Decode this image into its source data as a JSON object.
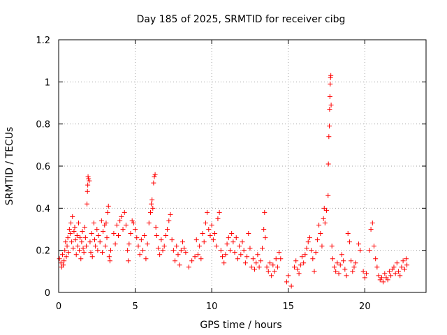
{
  "chart_data": {
    "type": "scatter",
    "title": "Day 185 of 2025, SRMTID for receiver cibg",
    "xlabel": "GPS time / hours",
    "ylabel": "SRMTID / TECUs",
    "xlim": [
      0,
      24
    ],
    "ylim": [
      0,
      1.2
    ],
    "xticks": [
      0,
      5,
      10,
      15,
      20
    ],
    "xtick_labels": [
      "0",
      "5",
      "10",
      "15",
      "20"
    ],
    "yticks": [
      0,
      0.2,
      0.4,
      0.6,
      0.8,
      1,
      1.2
    ],
    "ytick_labels": [
      "0",
      "0.2",
      "0.4",
      "0.6",
      "0.8",
      "1",
      "1.2"
    ],
    "grid": true,
    "marker": "+",
    "color": "#ff0000",
    "series": [
      {
        "name": "SRMTID",
        "points": [
          [
            0.05,
            0.16
          ],
          [
            0.15,
            0.14
          ],
          [
            0.2,
            0.12
          ],
          [
            0.25,
            0.18
          ],
          [
            0.3,
            0.13
          ],
          [
            0.35,
            0.15
          ],
          [
            0.4,
            0.2
          ],
          [
            0.45,
            0.24
          ],
          [
            0.5,
            0.17
          ],
          [
            0.55,
            0.22
          ],
          [
            0.6,
            0.26
          ],
          [
            0.65,
            0.19
          ],
          [
            0.7,
            0.3
          ],
          [
            0.75,
            0.28
          ],
          [
            0.8,
            0.33
          ],
          [
            0.85,
            0.24
          ],
          [
            0.9,
            0.36
          ],
          [
            0.95,
            0.21
          ],
          [
            1.0,
            0.29
          ],
          [
            1.05,
            0.31
          ],
          [
            1.1,
            0.25
          ],
          [
            1.15,
            0.18
          ],
          [
            1.2,
            0.27
          ],
          [
            1.25,
            0.22
          ],
          [
            1.3,
            0.33
          ],
          [
            1.35,
            0.2
          ],
          [
            1.4,
            0.26
          ],
          [
            1.45,
            0.16
          ],
          [
            1.5,
            0.24
          ],
          [
            1.55,
            0.29
          ],
          [
            1.6,
            0.21
          ],
          [
            1.65,
            0.19
          ],
          [
            1.7,
            0.31
          ],
          [
            1.75,
            0.26
          ],
          [
            1.8,
            0.22
          ],
          [
            1.85,
            0.42
          ],
          [
            1.88,
            0.48
          ],
          [
            1.9,
            0.51
          ],
          [
            1.92,
            0.55
          ],
          [
            1.95,
            0.54
          ],
          [
            2.0,
            0.53
          ],
          [
            2.05,
            0.24
          ],
          [
            2.1,
            0.19
          ],
          [
            2.15,
            0.28
          ],
          [
            2.2,
            0.17
          ],
          [
            2.3,
            0.33
          ],
          [
            2.35,
            0.25
          ],
          [
            2.4,
            0.22
          ],
          [
            2.5,
            0.3
          ],
          [
            2.55,
            0.2
          ],
          [
            2.6,
            0.27
          ],
          [
            2.7,
            0.24
          ],
          [
            2.8,
            0.34
          ],
          [
            2.85,
            0.19
          ],
          [
            2.9,
            0.29
          ],
          [
            3.0,
            0.32
          ],
          [
            3.05,
            0.22
          ],
          [
            3.1,
            0.33
          ],
          [
            3.15,
            0.26
          ],
          [
            3.2,
            0.38
          ],
          [
            3.25,
            0.41
          ],
          [
            3.3,
            0.17
          ],
          [
            3.35,
            0.15
          ],
          [
            3.4,
            0.2
          ],
          [
            3.6,
            0.28
          ],
          [
            3.7,
            0.23
          ],
          [
            3.8,
            0.32
          ],
          [
            3.9,
            0.27
          ],
          [
            4.0,
            0.34
          ],
          [
            4.1,
            0.36
          ],
          [
            4.2,
            0.3
          ],
          [
            4.3,
            0.38
          ],
          [
            4.4,
            0.32
          ],
          [
            4.5,
            0.2
          ],
          [
            4.55,
            0.15
          ],
          [
            4.6,
            0.23
          ],
          [
            4.7,
            0.28
          ],
          [
            4.8,
            0.34
          ],
          [
            4.9,
            0.33
          ],
          [
            5.0,
            0.3
          ],
          [
            5.1,
            0.26
          ],
          [
            5.2,
            0.22
          ],
          [
            5.3,
            0.18
          ],
          [
            5.4,
            0.25
          ],
          [
            5.5,
            0.2
          ],
          [
            5.6,
            0.27
          ],
          [
            5.7,
            0.16
          ],
          [
            5.8,
            0.23
          ],
          [
            5.9,
            0.33
          ],
          [
            6.0,
            0.38
          ],
          [
            6.05,
            0.42
          ],
          [
            6.1,
            0.44
          ],
          [
            6.15,
            0.4
          ],
          [
            6.2,
            0.52
          ],
          [
            6.25,
            0.55
          ],
          [
            6.3,
            0.56
          ],
          [
            6.35,
            0.31
          ],
          [
            6.4,
            0.27
          ],
          [
            6.5,
            0.21
          ],
          [
            6.6,
            0.18
          ],
          [
            6.7,
            0.25
          ],
          [
            6.8,
            0.2
          ],
          [
            6.9,
            0.22
          ],
          [
            7.0,
            0.27
          ],
          [
            7.1,
            0.3
          ],
          [
            7.2,
            0.34
          ],
          [
            7.3,
            0.37
          ],
          [
            7.4,
            0.25
          ],
          [
            7.5,
            0.2
          ],
          [
            7.6,
            0.15
          ],
          [
            7.7,
            0.22
          ],
          [
            7.8,
            0.18
          ],
          [
            7.9,
            0.13
          ],
          [
            8.0,
            0.2
          ],
          [
            8.1,
            0.24
          ],
          [
            8.2,
            0.21
          ],
          [
            8.3,
            0.19
          ],
          [
            8.5,
            0.12
          ],
          [
            8.7,
            0.15
          ],
          [
            8.9,
            0.17
          ],
          [
            9.0,
            0.25
          ],
          [
            9.1,
            0.18
          ],
          [
            9.2,
            0.22
          ],
          [
            9.3,
            0.16
          ],
          [
            9.4,
            0.28
          ],
          [
            9.5,
            0.24
          ],
          [
            9.6,
            0.33
          ],
          [
            9.7,
            0.38
          ],
          [
            9.8,
            0.3
          ],
          [
            9.9,
            0.27
          ],
          [
            10.0,
            0.32
          ],
          [
            10.1,
            0.25
          ],
          [
            10.2,
            0.28
          ],
          [
            10.3,
            0.22
          ],
          [
            10.4,
            0.35
          ],
          [
            10.5,
            0.38
          ],
          [
            10.6,
            0.2
          ],
          [
            10.7,
            0.17
          ],
          [
            10.8,
            0.14
          ],
          [
            10.9,
            0.18
          ],
          [
            11.0,
            0.23
          ],
          [
            11.1,
            0.26
          ],
          [
            11.2,
            0.2
          ],
          [
            11.3,
            0.28
          ],
          [
            11.4,
            0.24
          ],
          [
            11.5,
            0.19
          ],
          [
            11.6,
            0.26
          ],
          [
            11.7,
            0.16
          ],
          [
            11.8,
            0.22
          ],
          [
            11.9,
            0.18
          ],
          [
            12.0,
            0.24
          ],
          [
            12.1,
            0.2
          ],
          [
            12.2,
            0.14
          ],
          [
            12.3,
            0.17
          ],
          [
            12.4,
            0.28
          ],
          [
            12.5,
            0.21
          ],
          [
            12.6,
            0.12
          ],
          [
            12.7,
            0.16
          ],
          [
            12.8,
            0.11
          ],
          [
            12.9,
            0.14
          ],
          [
            13.0,
            0.18
          ],
          [
            13.1,
            0.12
          ],
          [
            13.2,
            0.15
          ],
          [
            13.3,
            0.21
          ],
          [
            13.4,
            0.3
          ],
          [
            13.45,
            0.38
          ],
          [
            13.5,
            0.26
          ],
          [
            13.6,
            0.12
          ],
          [
            13.7,
            0.1
          ],
          [
            13.8,
            0.14
          ],
          [
            13.9,
            0.08
          ],
          [
            14.0,
            0.13
          ],
          [
            14.1,
            0.1
          ],
          [
            14.2,
            0.16
          ],
          [
            14.3,
            0.12
          ],
          [
            14.4,
            0.19
          ],
          [
            14.5,
            0.16
          ],
          [
            14.9,
            0.05
          ],
          [
            15.0,
            0.08
          ],
          [
            15.2,
            0.03
          ],
          [
            15.4,
            0.12
          ],
          [
            15.5,
            0.15
          ],
          [
            15.6,
            0.11
          ],
          [
            15.7,
            0.09
          ],
          [
            15.8,
            0.13
          ],
          [
            15.9,
            0.17
          ],
          [
            16.0,
            0.14
          ],
          [
            16.1,
            0.18
          ],
          [
            16.2,
            0.21
          ],
          [
            16.3,
            0.24
          ],
          [
            16.4,
            0.26
          ],
          [
            16.5,
            0.2
          ],
          [
            16.6,
            0.16
          ],
          [
            16.7,
            0.1
          ],
          [
            16.8,
            0.19
          ],
          [
            16.9,
            0.25
          ],
          [
            17.0,
            0.32
          ],
          [
            17.1,
            0.28
          ],
          [
            17.2,
            0.22
          ],
          [
            17.3,
            0.35
          ],
          [
            17.35,
            0.4
          ],
          [
            17.4,
            0.33
          ],
          [
            17.5,
            0.39
          ],
          [
            17.6,
            0.46
          ],
          [
            17.62,
            0.61
          ],
          [
            17.65,
            0.74
          ],
          [
            17.68,
            0.79
          ],
          [
            17.7,
            0.87
          ],
          [
            17.72,
            0.93
          ],
          [
            17.74,
            0.99
          ],
          [
            17.76,
            1.02
          ],
          [
            17.78,
            1.03
          ],
          [
            17.8,
            0.89
          ],
          [
            17.85,
            0.22
          ],
          [
            17.9,
            0.16
          ],
          [
            18.0,
            0.12
          ],
          [
            18.1,
            0.1
          ],
          [
            18.2,
            0.14
          ],
          [
            18.3,
            0.09
          ],
          [
            18.4,
            0.13
          ],
          [
            18.5,
            0.18
          ],
          [
            18.6,
            0.15
          ],
          [
            18.7,
            0.11
          ],
          [
            18.8,
            0.08
          ],
          [
            18.9,
            0.28
          ],
          [
            19.0,
            0.24
          ],
          [
            19.1,
            0.15
          ],
          [
            19.2,
            0.1
          ],
          [
            19.3,
            0.12
          ],
          [
            19.4,
            0.14
          ],
          [
            19.6,
            0.23
          ],
          [
            19.7,
            0.2
          ],
          [
            19.9,
            0.1
          ],
          [
            20.0,
            0.07
          ],
          [
            20.1,
            0.09
          ],
          [
            20.3,
            0.2
          ],
          [
            20.4,
            0.3
          ],
          [
            20.5,
            0.33
          ],
          [
            20.6,
            0.22
          ],
          [
            20.7,
            0.16
          ],
          [
            20.8,
            0.12
          ],
          [
            20.9,
            0.08
          ],
          [
            21.0,
            0.06
          ],
          [
            21.1,
            0.07
          ],
          [
            21.2,
            0.05
          ],
          [
            21.3,
            0.09
          ],
          [
            21.4,
            0.07
          ],
          [
            21.5,
            0.06
          ],
          [
            21.6,
            0.1
          ],
          [
            21.7,
            0.08
          ],
          [
            21.8,
            0.11
          ],
          [
            21.9,
            0.12
          ],
          [
            22.0,
            0.09
          ],
          [
            22.1,
            0.14
          ],
          [
            22.2,
            0.1
          ],
          [
            22.3,
            0.08
          ],
          [
            22.4,
            0.12
          ],
          [
            22.5,
            0.15
          ],
          [
            22.6,
            0.11
          ],
          [
            22.7,
            0.16
          ],
          [
            22.75,
            0.13
          ]
        ]
      }
    ]
  }
}
